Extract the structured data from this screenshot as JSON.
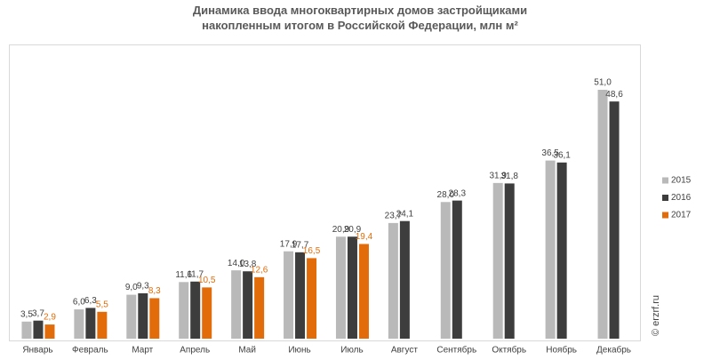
{
  "chart_data": {
    "type": "bar",
    "title": "Динамика ввода многоквартирных домов застройщиками накопленным итогом в Российской Федерации, млн м²",
    "categories": [
      "Январь",
      "Февраль",
      "Март",
      "Апрель",
      "Май",
      "Июнь",
      "Июль",
      "Август",
      "Сентябрь",
      "Октябрь",
      "Ноябрь",
      "Декабрь"
    ],
    "series": [
      {
        "name": "2015",
        "color": "#b9b9b9",
        "values": [
          3.5,
          6.0,
          9.0,
          11.6,
          14.0,
          17.9,
          20.9,
          23.7,
          28.0,
          31.9,
          36.5,
          51.0
        ],
        "value_labels": [
          "3,5",
          "6,0",
          "9,0",
          "11,6",
          "14,0",
          "17,9",
          "20,9",
          "23,7",
          "28,0",
          "31,9",
          "36,5",
          "51,0"
        ]
      },
      {
        "name": "2016",
        "color": "#3d3d3d",
        "values": [
          3.7,
          6.3,
          9.3,
          11.7,
          13.8,
          17.7,
          20.9,
          24.1,
          28.3,
          31.8,
          36.1,
          48.6
        ],
        "value_labels": [
          "3,7",
          "6,3",
          "9,3",
          "11,7",
          "13,8",
          "17,7",
          "20,9",
          "24,1",
          "28,3",
          "31,8",
          "36,1",
          "48,6"
        ]
      },
      {
        "name": "2017",
        "color": "#e36c0a",
        "values": [
          2.9,
          5.5,
          8.3,
          10.5,
          12.6,
          16.5,
          19.4,
          null,
          null,
          null,
          null,
          null
        ],
        "value_labels": [
          "2,9",
          "5,5",
          "8,3",
          "10,5",
          "12,6",
          "16,5",
          "19,4",
          null,
          null,
          null,
          null,
          null
        ]
      }
    ],
    "watermark": "© erzrf.ru",
    "legend": "right"
  }
}
